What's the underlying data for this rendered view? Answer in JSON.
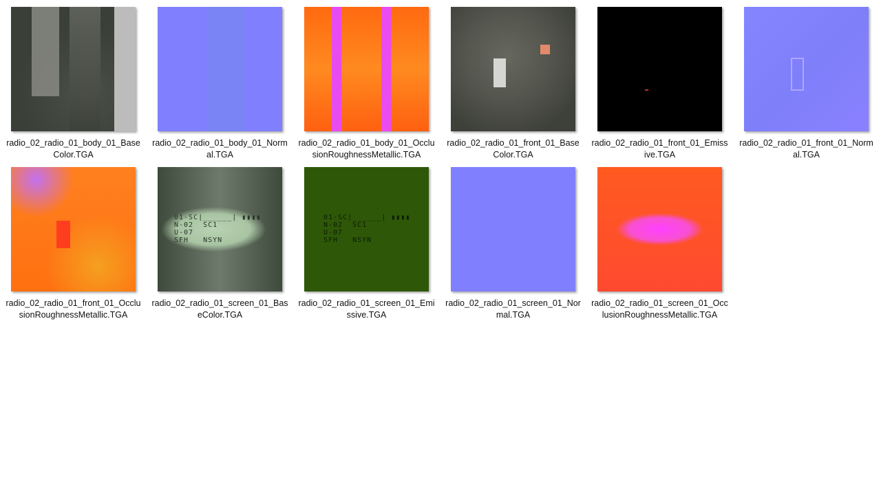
{
  "files": [
    {
      "name": "radio_02_radio_01_body_01_BaseColor.TGA",
      "thumb": "t-body-base"
    },
    {
      "name": "radio_02_radio_01_body_01_Normal.TGA",
      "thumb": "t-body-normal"
    },
    {
      "name": "radio_02_radio_01_body_01_OcclusionRoughnessMetallic.TGA",
      "thumb": "t-body-orm"
    },
    {
      "name": "radio_02_radio_01_front_01_BaseColor.TGA",
      "thumb": "t-front-base"
    },
    {
      "name": "radio_02_radio_01_front_01_Emissive.TGA",
      "thumb": "t-black"
    },
    {
      "name": "radio_02_radio_01_front_01_Normal.TGA",
      "thumb": "t-front-normal"
    },
    {
      "name": "radio_02_radio_01_front_01_OcclusionRoughnessMetallic.TGA",
      "thumb": "t-front-orm"
    },
    {
      "name": "radio_02_radio_01_screen_01_BaseColor.TGA",
      "thumb": "t-screen-base"
    },
    {
      "name": "radio_02_radio_01_screen_01_Emissive.TGA",
      "thumb": "t-screen-emis"
    },
    {
      "name": "radio_02_radio_01_screen_01_Normal.TGA",
      "thumb": "t-normal"
    },
    {
      "name": "radio_02_radio_01_screen_01_OcclusionRoughnessMetallic.TGA",
      "thumb": "t-screen-orm"
    }
  ],
  "screen_texture_text": "01-SC|______| ▮▮▮▮\nN-02  SC1\nU-07\nSFH   NSYN"
}
